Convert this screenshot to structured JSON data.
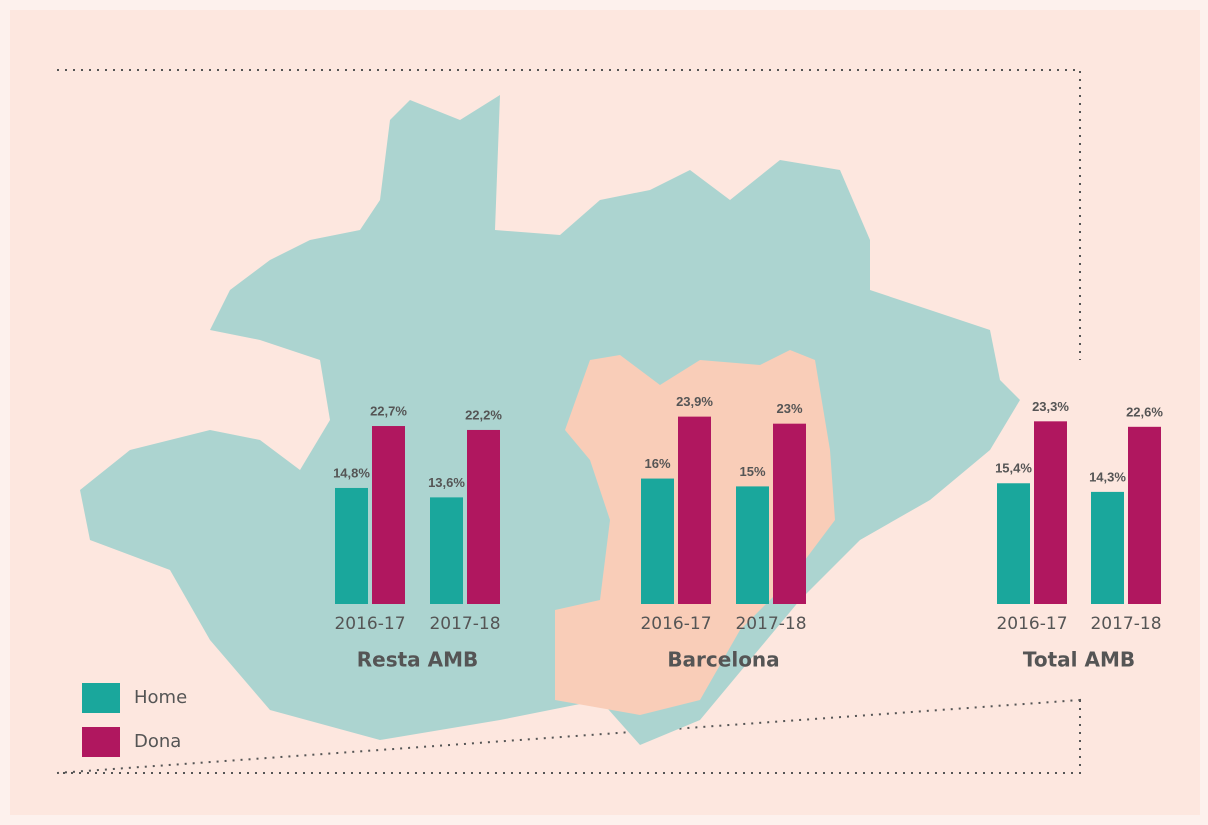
{
  "chart_data": {
    "type": "bar",
    "groups": [
      "Resta AMB",
      "Barcelona",
      "Total AMB"
    ],
    "categories": [
      "2016-17",
      "2017-18",
      "2016-17",
      "2017-18",
      "2016-17",
      "2017-18"
    ],
    "series": [
      {
        "name": "Home",
        "color": "#1aa79c",
        "values": [
          14.8,
          13.6,
          16,
          15,
          15.4,
          14.3
        ],
        "value_labels": [
          "14,8%",
          "13,6%",
          "16%",
          "15%",
          "15,4%",
          "14,3%"
        ]
      },
      {
        "name": "Dona",
        "color": "#b0175f",
        "values": [
          22.7,
          22.2,
          23.9,
          23,
          23.3,
          22.6
        ],
        "value_labels": [
          "22,7%",
          "22,2%",
          "23,9%",
          "23%",
          "23,3%",
          "22,6%"
        ]
      }
    ]
  }
}
